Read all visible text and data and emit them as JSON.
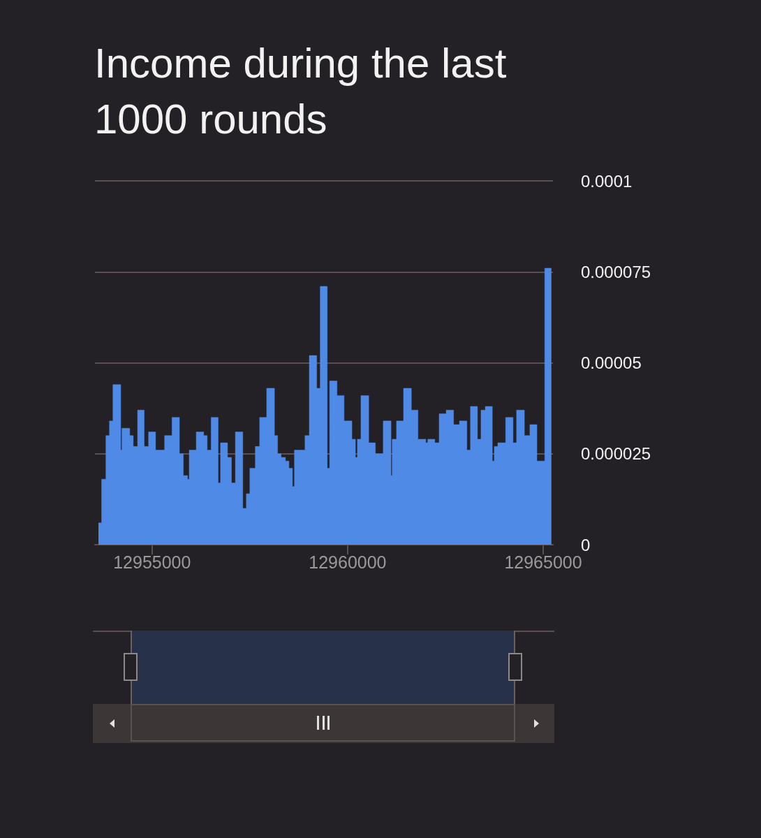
{
  "chart_data": {
    "type": "area",
    "title": "Income during the last 1000 rounds",
    "x": [
      12953630,
      12953710,
      12953710,
      12953820,
      12953820,
      12953910,
      12953910,
      12954000,
      12954000,
      12954200,
      12954200,
      12954230,
      12954230,
      12954430,
      12954430,
      12954520,
      12954520,
      12954630,
      12954630,
      12954800,
      12954800,
      12954910,
      12954910,
      12955090,
      12955090,
      12955230,
      12955230,
      12955320,
      12955320,
      12955510,
      12955510,
      12955700,
      12955700,
      12955800,
      12955800,
      12955910,
      12955910,
      12955950,
      12955950,
      12956130,
      12956130,
      12956320,
      12956320,
      12956410,
      12956410,
      12956510,
      12956510,
      12956690,
      12956690,
      12956750,
      12956750,
      12956930,
      12956930,
      12957030,
      12957030,
      12957130,
      12957130,
      12957320,
      12957320,
      12957410,
      12957410,
      12957500,
      12957500,
      12957640,
      12957640,
      12957750,
      12957750,
      12957930,
      12957930,
      12958130,
      12958130,
      12958210,
      12958210,
      12958300,
      12958300,
      12958410,
      12958410,
      12958500,
      12958500,
      12958590,
      12958590,
      12958640,
      12958640,
      12958910,
      12958910,
      12959020,
      12959020,
      12959210,
      12959210,
      12959300,
      12959300,
      12959480,
      12959480,
      12959540,
      12959540,
      12959730,
      12959730,
      12959910,
      12959910,
      12960110,
      12960110,
      12960200,
      12960200,
      12960250,
      12960250,
      12960340,
      12960340,
      12960540,
      12960540,
      12960710,
      12960710,
      12960910,
      12960910,
      12961110,
      12961110,
      12961140,
      12961140,
      12961250,
      12961250,
      12961430,
      12961430,
      12961630,
      12961630,
      12961800,
      12961800,
      12962000,
      12962000,
      12962050,
      12962050,
      12962230,
      12962230,
      12962340,
      12962340,
      12962520,
      12962520,
      12962710,
      12962710,
      12962860,
      12962860,
      12963050,
      12963050,
      12963140,
      12963140,
      12963320,
      12963320,
      12963410,
      12963410,
      12963520,
      12963520,
      12963700,
      12963700,
      12963750,
      12963750,
      12963840,
      12963840,
      12964040,
      12964040,
      12964230,
      12964230,
      12964320,
      12964320,
      12964520,
      12964520,
      12964660,
      12964660,
      12964840,
      12964840,
      12965040,
      12965040,
      12965210
    ],
    "values": [
      6e-06,
      6e-06,
      1.8e-05,
      1.8e-05,
      3e-05,
      3e-05,
      3.4e-05,
      3.4e-05,
      4.4e-05,
      4.4e-05,
      2.6e-05,
      2.6e-05,
      3.2e-05,
      3.2e-05,
      3e-05,
      3e-05,
      2.7e-05,
      2.7e-05,
      3.7e-05,
      3.7e-05,
      2.7e-05,
      2.7e-05,
      3.1e-05,
      3.1e-05,
      2.6e-05,
      2.6e-05,
      2.6e-05,
      2.6e-05,
      3e-05,
      3e-05,
      3.5e-05,
      3.5e-05,
      2.5e-05,
      2.5e-05,
      1.9e-05,
      1.9e-05,
      1.8e-05,
      1.8e-05,
      2.6e-05,
      2.6e-05,
      3.1e-05,
      3.1e-05,
      3e-05,
      3e-05,
      2.6e-05,
      2.6e-05,
      3.5e-05,
      3.5e-05,
      1.7e-05,
      1.7e-05,
      2.8e-05,
      2.8e-05,
      2.4e-05,
      2.4e-05,
      1.7e-05,
      1.7e-05,
      3.1e-05,
      3.1e-05,
      1e-05,
      1e-05,
      1.4e-05,
      1.4e-05,
      2.1e-05,
      2.1e-05,
      2.7e-05,
      2.7e-05,
      3.5e-05,
      3.5e-05,
      4.3e-05,
      4.3e-05,
      3e-05,
      3e-05,
      2.5e-05,
      2.5e-05,
      2.4e-05,
      2.4e-05,
      2.3e-05,
      2.3e-05,
      2.1e-05,
      2.1e-05,
      1.6e-05,
      1.6e-05,
      2.6e-05,
      2.6e-05,
      3e-05,
      3e-05,
      5.2e-05,
      5.2e-05,
      4.3e-05,
      4.3e-05,
      7.1e-05,
      7.1e-05,
      2.1e-05,
      2.1e-05,
      4.5e-05,
      4.5e-05,
      4.1e-05,
      4.1e-05,
      3.4e-05,
      3.4e-05,
      2.9e-05,
      2.9e-05,
      2.4e-05,
      2.4e-05,
      2.9e-05,
      2.9e-05,
      4.1e-05,
      4.1e-05,
      2.8e-05,
      2.8e-05,
      2.5e-05,
      2.5e-05,
      3.4e-05,
      3.4e-05,
      1.9e-05,
      1.9e-05,
      2.9e-05,
      2.9e-05,
      3.4e-05,
      3.4e-05,
      4.3e-05,
      4.3e-05,
      3.7e-05,
      3.7e-05,
      2.9e-05,
      2.9e-05,
      2.8e-05,
      2.8e-05,
      2.9e-05,
      2.9e-05,
      2.8e-05,
      2.8e-05,
      3.6e-05,
      3.6e-05,
      3.7e-05,
      3.7e-05,
      3.3e-05,
      3.3e-05,
      3.4e-05,
      3.4e-05,
      2.6e-05,
      2.6e-05,
      3.8e-05,
      3.8e-05,
      2.9e-05,
      2.9e-05,
      3.7e-05,
      3.7e-05,
      3.8e-05,
      3.8e-05,
      2.3e-05,
      2.3e-05,
      2.7e-05,
      2.7e-05,
      2.8e-05,
      2.8e-05,
      3.5e-05,
      3.5e-05,
      2.8e-05,
      2.8e-05,
      3.7e-05,
      3.7e-05,
      3e-05,
      3e-05,
      3.3e-05,
      3.3e-05,
      2.3e-05,
      2.3e-05,
      7.6e-05,
      7.6e-05
    ],
    "color": "#4f8be6",
    "xlim": [
      12953540,
      12965250
    ],
    "xticks": [
      12955000,
      12960000,
      12965000
    ],
    "ylim": [
      0,
      0.0001
    ],
    "yticks": [
      0,
      {
        "value": 2.5e-05,
        "label": "0.000025"
      },
      {
        "value": 5e-05,
        "label": "0.00005"
      },
      {
        "value": 7.5e-05,
        "label": "0.000075"
      },
      0.0001
    ],
    "grid": "y",
    "marker": "none"
  }
}
